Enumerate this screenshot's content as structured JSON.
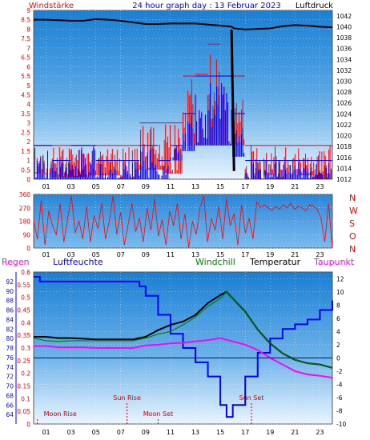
{
  "header": {
    "title": "24 hour graph day : 13 Februar 2023",
    "left_label": "Windstärke",
    "right_label": "Luftdruck"
  },
  "colors": {
    "background": "#ffffff",
    "plot_top": "#1a7fd4",
    "plot_bottom": "#e6f3ff",
    "red_series": "#ff0000",
    "blue_series": "#0000ff",
    "black_series": "#000000",
    "magenta_series": "#ff00ff",
    "green_series": "#008000",
    "axis_left_red": "#ff0000",
    "axis_blue": "#0000ff",
    "event_text": "#cc0000"
  },
  "chart_data": [
    {
      "type": "bar",
      "name": "wind_and_pressure",
      "xlabel": "",
      "ylabel_left": "Windstärke",
      "ylabel_right": "Luftdruck",
      "x_ticks": [
        "01",
        "03",
        "05",
        "07",
        "09",
        "11",
        "13",
        "15",
        "17",
        "19",
        "21",
        "23"
      ],
      "ylim_left": [
        0,
        9
      ],
      "yticks_left": [
        "0",
        "0.5",
        "1",
        "1.5",
        "2",
        "2.5",
        "3",
        "3.5",
        "4",
        "4.5",
        "5",
        "5.5",
        "6",
        "6.5",
        "7",
        "7.5",
        "8",
        "8.5",
        "9"
      ],
      "ylim_right": [
        1012,
        1043
      ],
      "yticks_right": [
        "1012",
        "1014",
        "1016",
        "1018",
        "1020",
        "1022",
        "1024",
        "1026",
        "1028",
        "1030",
        "1032",
        "1034",
        "1036",
        "1038",
        "1040",
        "1042"
      ],
      "series": [
        {
          "name": "Luftdruck",
          "color": "#000000",
          "points": [
            [
              0,
              1041.3
            ],
            [
              1,
              1041.3
            ],
            [
              2,
              1041.2
            ],
            [
              3,
              1041.1
            ],
            [
              4,
              1041.1
            ],
            [
              5,
              1041.4
            ],
            [
              6,
              1041.3
            ],
            [
              7,
              1041.1
            ],
            [
              8,
              1040.8
            ],
            [
              9,
              1040.5
            ],
            [
              10,
              1040.5
            ],
            [
              11,
              1040.6
            ],
            [
              12,
              1040.6
            ],
            [
              13,
              1040.6
            ],
            [
              14,
              1040.4
            ],
            [
              15,
              1040.2
            ],
            [
              15.9,
              1040.0
            ],
            [
              16.1,
              1039.7
            ],
            [
              17,
              1039.5
            ],
            [
              18,
              1039.6
            ],
            [
              19,
              1039.7
            ],
            [
              20,
              1040.1
            ],
            [
              21,
              1040.3
            ],
            [
              22,
              1040.2
            ],
            [
              23,
              1040.0
            ],
            [
              24,
              1039.9
            ]
          ],
          "spike": [
            [
              15.9,
              1039.5
            ],
            [
              16.1,
              1013.5
            ]
          ]
        },
        {
          "name": "gust",
          "color": "#ff0000",
          "segments": [
            [
              0,
              0.3,
              1.8
            ],
            [
              1.5,
              0.1,
              1.8
            ],
            [
              4.5,
              0.2,
              1.8
            ],
            [
              7,
              0,
              1.8
            ],
            [
              8.5,
              0.5,
              3.0
            ],
            [
              10.5,
              0.3,
              3.0
            ],
            [
              12,
              1.8,
              5.5
            ],
            [
              13,
              1.8,
              5.6
            ],
            [
              14,
              1.8,
              7.2
            ],
            [
              15,
              1.8,
              5.5
            ],
            [
              16,
              1.8,
              5.5
            ],
            [
              17,
              0,
              1.8
            ],
            [
              18.5,
              0.2,
              1.8
            ],
            [
              19.5,
              0,
              1.8
            ],
            [
              21,
              0.2,
              1.8
            ],
            [
              22.5,
              0,
              1.8
            ]
          ]
        },
        {
          "name": "mean",
          "color": "#0000ff",
          "segments": [
            [
              0,
              0,
              1.8
            ],
            [
              1.5,
              0,
              1.0
            ],
            [
              3,
              0,
              1.8
            ],
            [
              5,
              0,
              1.0
            ],
            [
              7,
              0,
              1.0
            ],
            [
              8.5,
              0,
              1.8
            ],
            [
              10,
              0,
              1.0
            ],
            [
              11,
              1.0,
              1.8
            ],
            [
              12,
              1.5,
              3.5
            ],
            [
              13,
              1.8,
              5.5
            ],
            [
              14,
              1.8,
              5.5
            ],
            [
              15,
              1.8,
              5.5
            ],
            [
              16,
              1.2,
              3.5
            ],
            [
              17,
              0,
              1.0
            ],
            [
              19,
              0,
              1.0
            ],
            [
              21,
              0,
              1.0
            ],
            [
              23,
              0,
              1.0
            ]
          ]
        }
      ]
    },
    {
      "type": "line",
      "name": "wind_direction",
      "x_ticks": [
        "01",
        "03",
        "05",
        "07",
        "09",
        "11",
        "13",
        "15",
        "17",
        "19",
        "21",
        "23"
      ],
      "ylim": [
        0,
        360
      ],
      "yticks": [
        "0",
        "90",
        "180",
        "270",
        "360"
      ],
      "right_labels": [
        "N",
        "W",
        "S",
        "O",
        "N"
      ],
      "color": "#ff0000",
      "values": [
        180,
        60,
        320,
        20,
        250,
        150,
        90,
        300,
        40,
        200,
        350,
        100,
        180,
        60,
        280,
        40,
        220,
        130,
        300,
        60,
        180,
        350,
        90,
        240,
        20,
        160,
        300,
        110,
        200,
        40,
        270,
        120,
        330,
        80,
        190,
        20,
        250,
        150,
        300,
        60,
        230,
        0,
        180,
        90,
        270,
        350,
        40,
        200,
        120,
        280,
        60,
        330,
        150,
        230,
        20,
        290,
        100,
        200,
        60,
        310,
        270,
        290,
        270,
        250,
        280,
        260,
        290,
        270,
        300,
        260,
        280,
        270,
        250,
        290,
        280,
        260,
        200,
        40,
        300,
        0
      ]
    },
    {
      "type": "line",
      "name": "humidity_temperature",
      "labels_top": [
        "Regen",
        "Luftfeuchte",
        "Windchill",
        "Temperatur",
        "Taupunkt"
      ],
      "ylim_rain": [
        0,
        0.6
      ],
      "yticks_rain": [
        "0",
        "0.05",
        "0.1",
        "0.15",
        "0.2",
        "0.25",
        "0.3",
        "0.35",
        "0.4",
        "0.45",
        "0.5",
        "0.55",
        "0.6"
      ],
      "ylim_humidity": [
        62,
        94
      ],
      "yticks_humidity": [
        "64",
        "66",
        "68",
        "70",
        "72",
        "74",
        "76",
        "78",
        "80",
        "82",
        "84",
        "86",
        "88",
        "90",
        "92"
      ],
      "ylim_temp": [
        -10,
        13
      ],
      "yticks_temp": [
        "-10",
        "-8",
        "-6",
        "-4",
        "-2",
        "0",
        "2",
        "4",
        "6",
        "8",
        "10",
        "12"
      ],
      "x_ticks": [
        "01",
        "03",
        "05",
        "07",
        "09",
        "11",
        "13",
        "15",
        "17",
        "19",
        "21",
        "23"
      ],
      "series": [
        {
          "name": "Luftfeuchte",
          "color": "#0000ff",
          "points": [
            [
              0,
              93
            ],
            [
              0.5,
              92
            ],
            [
              1,
              92
            ],
            [
              2,
              92
            ],
            [
              3,
              92
            ],
            [
              4,
              92
            ],
            [
              5,
              92
            ],
            [
              6,
              92
            ],
            [
              7,
              92
            ],
            [
              8,
              92
            ],
            [
              8.5,
              91
            ],
            [
              9,
              89
            ],
            [
              10,
              85
            ],
            [
              11,
              81
            ],
            [
              12,
              78
            ],
            [
              13,
              75
            ],
            [
              14,
              72
            ],
            [
              15,
              66
            ],
            [
              15.5,
              63.5
            ],
            [
              16,
              66
            ],
            [
              17,
              72
            ],
            [
              18,
              77
            ],
            [
              19,
              80
            ],
            [
              20,
              82
            ],
            [
              21,
              83
            ],
            [
              22,
              84
            ],
            [
              23,
              86
            ],
            [
              24,
              88
            ]
          ]
        },
        {
          "name": "Temperatur",
          "color": "#000000",
          "points": [
            [
              0,
              3.2
            ],
            [
              1,
              3.2
            ],
            [
              2,
              3.0
            ],
            [
              3,
              3.0
            ],
            [
              4,
              2.9
            ],
            [
              5,
              2.8
            ],
            [
              6,
              2.8
            ],
            [
              7,
              2.8
            ],
            [
              8,
              2.8
            ],
            [
              9,
              3.2
            ],
            [
              10,
              4.2
            ],
            [
              11,
              5.0
            ],
            [
              12,
              5.5
            ],
            [
              13,
              6.5
            ],
            [
              14,
              8.3
            ],
            [
              15,
              9.5
            ],
            [
              15.5,
              10.0
            ],
            [
              16,
              9.0
            ],
            [
              17,
              7.0
            ],
            [
              18,
              4.3
            ],
            [
              19,
              2.2
            ],
            [
              20,
              0.7
            ],
            [
              21,
              -0.3
            ],
            [
              22,
              -0.8
            ],
            [
              23,
              -1.0
            ],
            [
              24,
              -1.5
            ]
          ]
        },
        {
          "name": "Windchill",
          "color": "#008000",
          "points": [
            [
              0,
              3.0
            ],
            [
              1,
              2.6
            ],
            [
              2,
              2.5
            ],
            [
              3,
              2.6
            ],
            [
              4,
              2.6
            ],
            [
              5,
              2.6
            ],
            [
              6,
              2.6
            ],
            [
              7,
              2.6
            ],
            [
              8,
              2.6
            ],
            [
              9,
              3.0
            ],
            [
              10,
              3.6
            ],
            [
              11,
              4.0
            ],
            [
              12,
              5.0
            ],
            [
              13,
              6.2
            ],
            [
              14,
              7.8
            ],
            [
              15,
              9.0
            ],
            [
              15.5,
              10.0
            ],
            [
              16,
              9.0
            ],
            [
              17,
              7.0
            ],
            [
              18,
              4.3
            ],
            [
              19,
              2.2
            ],
            [
              20,
              0.7
            ],
            [
              21,
              -0.3
            ],
            [
              22,
              -0.8
            ],
            [
              23,
              -1.0
            ],
            [
              24,
              -1.5
            ]
          ]
        },
        {
          "name": "Taupunkt",
          "color": "#ff00ff",
          "points": [
            [
              0,
              1.8
            ],
            [
              1,
              1.8
            ],
            [
              2,
              1.6
            ],
            [
              3,
              1.6
            ],
            [
              4,
              1.6
            ],
            [
              5,
              1.5
            ],
            [
              6,
              1.5
            ],
            [
              7,
              1.5
            ],
            [
              8,
              1.5
            ],
            [
              9,
              1.9
            ],
            [
              10,
              2.0
            ],
            [
              11,
              2.2
            ],
            [
              12,
              2.3
            ],
            [
              13,
              2.5
            ],
            [
              14,
              2.7
            ],
            [
              15,
              3.0
            ],
            [
              16,
              2.5
            ],
            [
              17,
              2.0
            ],
            [
              18,
              1.2
            ],
            [
              19,
              0.0
            ],
            [
              20,
              -1.0
            ],
            [
              21,
              -2.0
            ],
            [
              22,
              -2.5
            ],
            [
              23,
              -2.7
            ],
            [
              24,
              -3.0
            ]
          ]
        }
      ],
      "zero_line": 0,
      "events": [
        {
          "label": "Moon Rise",
          "hour": 0.3,
          "row": "lower"
        },
        {
          "label": "Sun Rise",
          "hour": 7.5,
          "row": "upper"
        },
        {
          "label": "Moon Set",
          "hour": 10.0,
          "row": "lower"
        },
        {
          "label": "Sun Set",
          "hour": 17.5,
          "row": "upper"
        }
      ]
    }
  ]
}
